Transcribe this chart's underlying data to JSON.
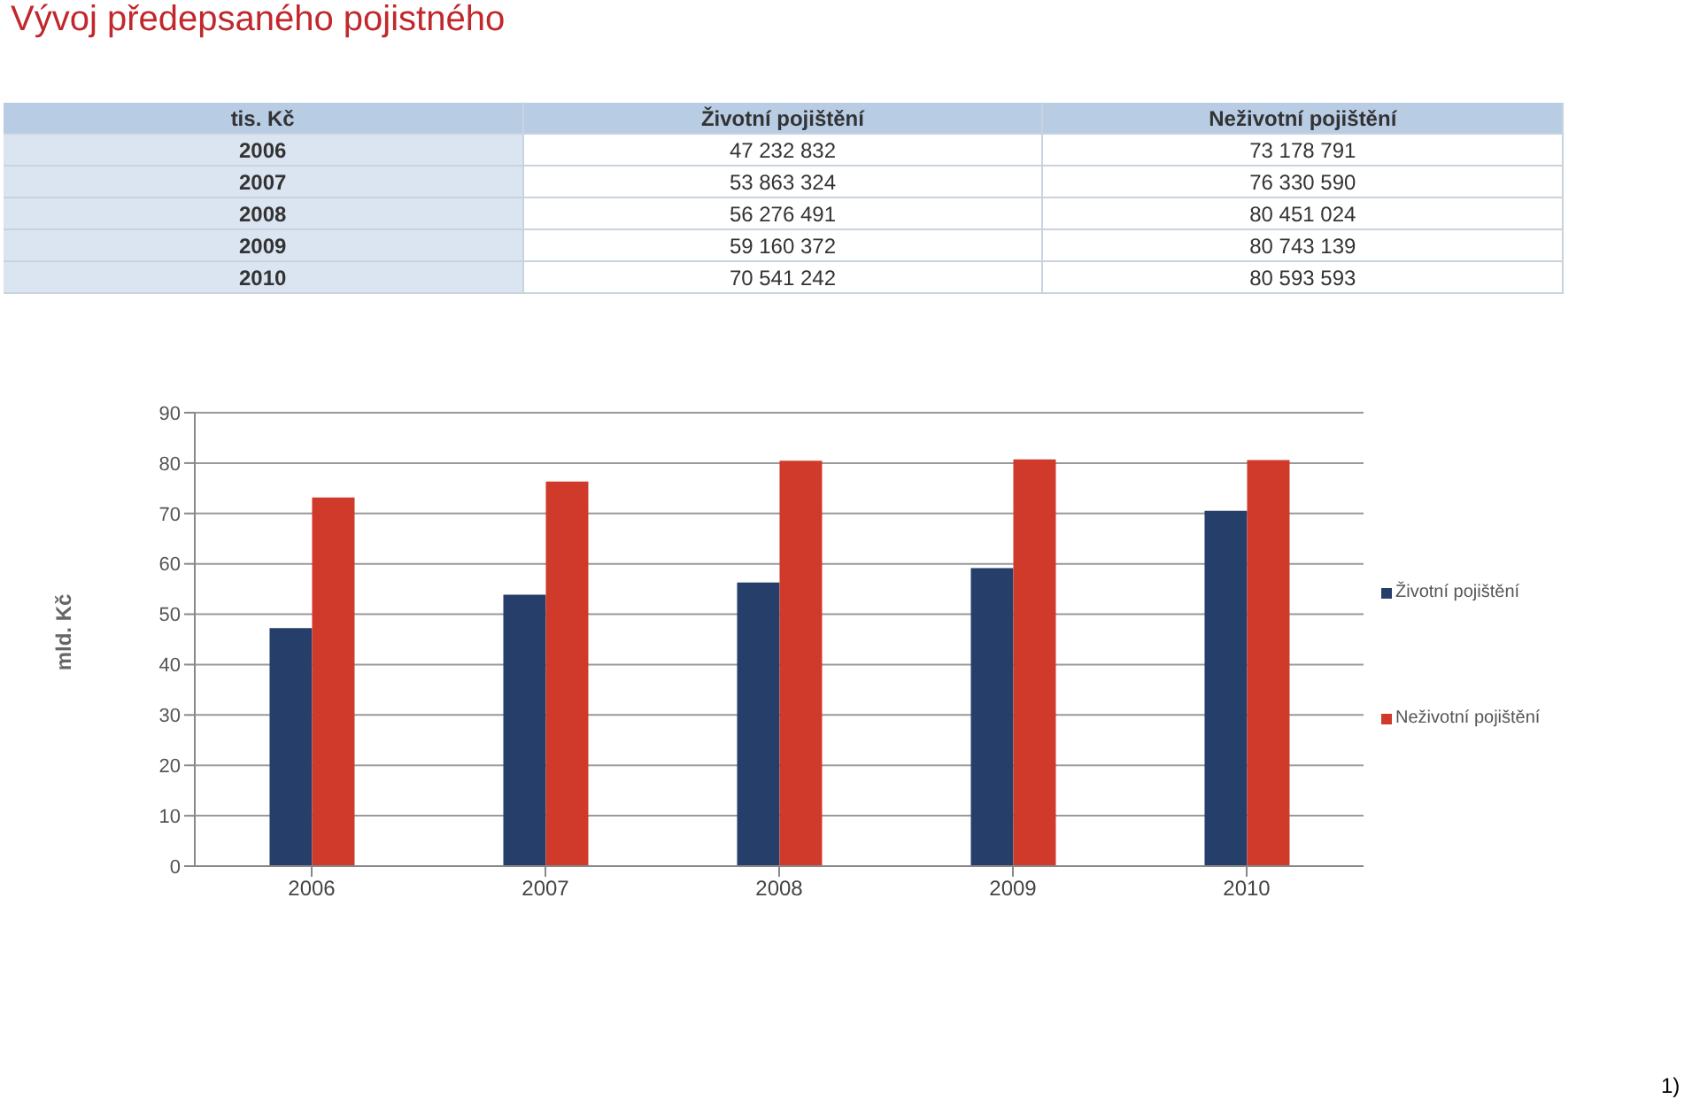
{
  "chart_data": [
    {
      "type": "heatmap",
      "title": "Vývoj předepsaného pojistného",
      "annotations": [
        "tis. Kč"
      ],
      "categories": [
        "Životní pojištění",
        "Neživotní pojištění"
      ],
      "y_categories": [
        "2006",
        "2007",
        "2008",
        "2009",
        "2010"
      ],
      "cells": [
        [
          47232832,
          73178791
        ],
        [
          53863324,
          76330590
        ],
        [
          56276491,
          80451024
        ],
        [
          59160372,
          80743139
        ],
        [
          70541242,
          80593593
        ]
      ],
      "cell_labels": [
        [
          "47 232 832",
          "73 178 791"
        ],
        [
          "53 863 324",
          "76 330 590"
        ],
        [
          "56 276 491",
          "80 451 024"
        ],
        [
          "59 160 372",
          "80 743 139"
        ],
        [
          "70 541 242",
          "80 593 593"
        ]
      ]
    },
    {
      "type": "bar",
      "ylabel": "mld. Kč",
      "categories": [
        "2006",
        "2007",
        "2008",
        "2009",
        "2010"
      ],
      "series": [
        {
          "name": "Životní pojištění",
          "color": "#253f6a",
          "values": [
            47.232832,
            53.863324,
            56.276491,
            59.160372,
            70.541242
          ]
        },
        {
          "name": "Neživotní pojištění",
          "color": "#d03a2a",
          "values": [
            73.178791,
            76.33059,
            80.451024,
            80.743139,
            80.593593
          ]
        }
      ],
      "ylim": [
        0,
        90
      ],
      "yticks": [
        0,
        10,
        20,
        30,
        40,
        50,
        60,
        70,
        80,
        90
      ],
      "grid": "y",
      "legend": "right",
      "annotations": [
        "1)"
      ]
    }
  ]
}
